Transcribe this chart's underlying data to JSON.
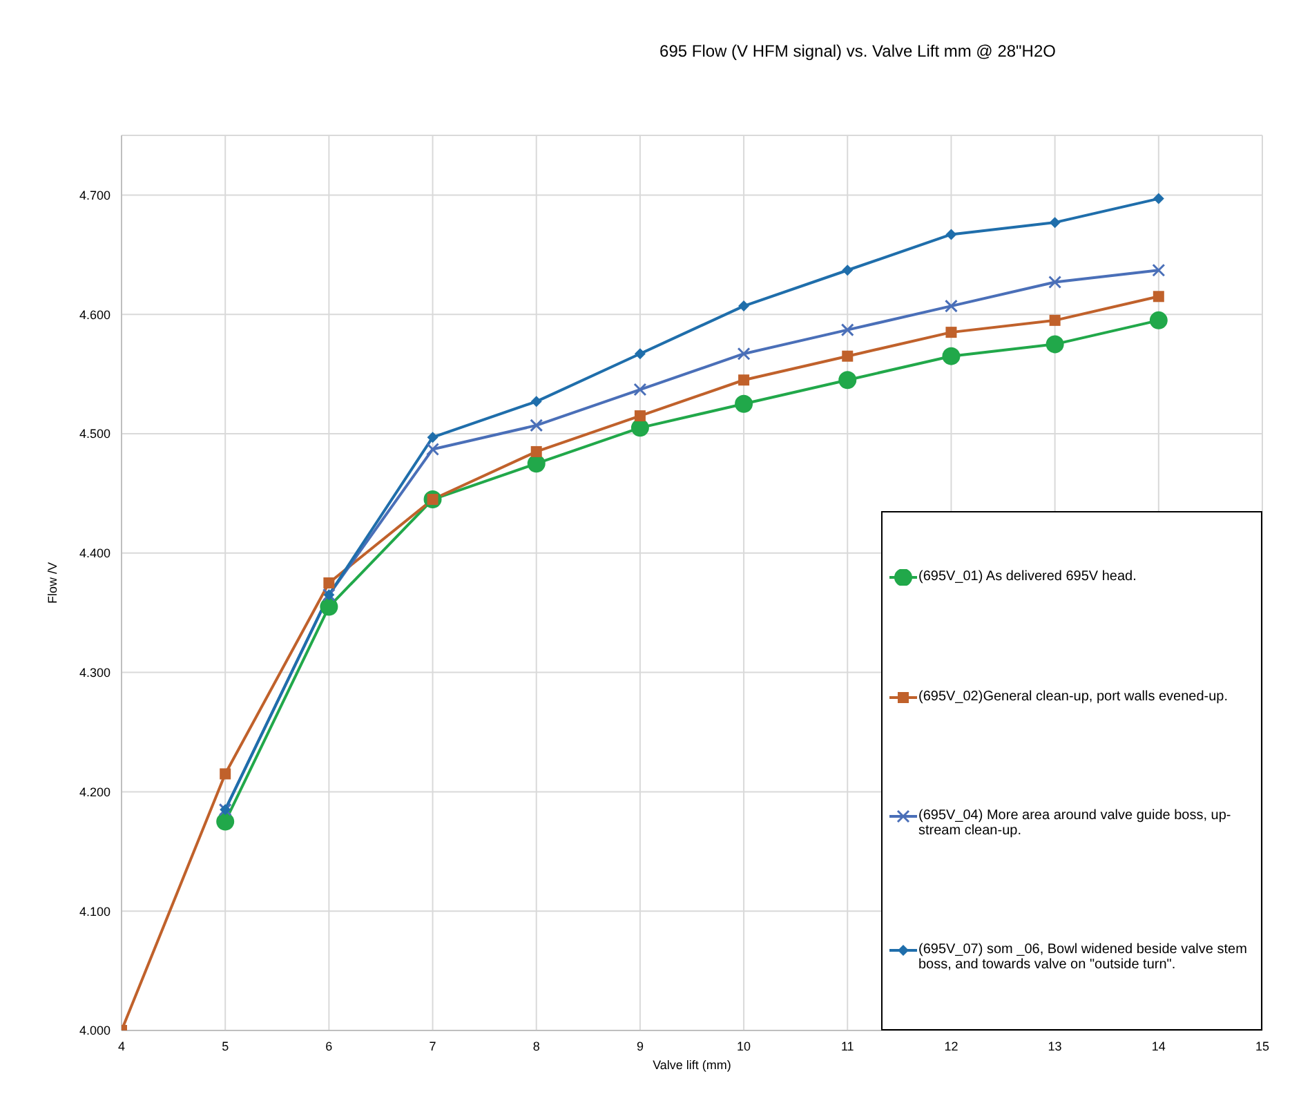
{
  "chart_data": {
    "type": "line",
    "title": "695 Flow (V HFM signal) vs. Valve Lift mm @ 28\"H2O",
    "xlabel": "Valve lift (mm)",
    "ylabel": "Flow /V",
    "x": [
      4,
      5,
      6,
      7,
      8,
      9,
      10,
      11,
      12,
      13,
      14
    ],
    "xlim": [
      4,
      15
    ],
    "xticks": [
      4,
      5,
      6,
      7,
      8,
      9,
      10,
      11,
      12,
      13,
      14,
      15
    ],
    "ylim": [
      4.0,
      4.75
    ],
    "yticks": [
      {
        "value": 4.0,
        "label": "4.000"
      },
      {
        "value": 4.1,
        "label": "4.100"
      },
      {
        "value": 4.2,
        "label": "4.200"
      },
      {
        "value": 4.3,
        "label": "4.300"
      },
      {
        "value": 4.4,
        "label": "4.400"
      },
      {
        "value": 4.5,
        "label": "4.500"
      },
      {
        "value": 4.6,
        "label": "4.600"
      },
      {
        "value": 4.7,
        "label": "4.700"
      }
    ],
    "grid": true,
    "legend": "bottom right",
    "line_style": "solid",
    "series": [
      {
        "name": "(695V_01) As delivered 695V head.",
        "color": "#21a84a",
        "marker": "circle",
        "values": [
          null,
          4.175,
          4.355,
          4.445,
          4.475,
          4.505,
          4.525,
          4.545,
          4.565,
          4.575,
          4.595
        ]
      },
      {
        "name": "(695V_02)General clean-up, port walls evened-up.",
        "color": "#c0612b",
        "marker": "square",
        "values": [
          4.0,
          4.215,
          4.375,
          4.445,
          4.485,
          4.515,
          4.545,
          4.565,
          4.585,
          4.595,
          4.615
        ]
      },
      {
        "name": "(695V_04) More area around valve guide boss, up-stream clean-up.",
        "color": "#4a6fb8",
        "marker": "cross",
        "values": [
          null,
          4.185,
          4.365,
          4.487,
          4.507,
          4.537,
          4.567,
          4.587,
          4.607,
          4.627,
          4.637
        ]
      },
      {
        "name": "(695V_07) som _06, Bowl widened beside valve stem boss, and towards valve on \"outside turn\".",
        "color": "#1f6eab",
        "marker": "diamond",
        "values": [
          null,
          4.185,
          4.365,
          4.497,
          4.527,
          4.567,
          4.607,
          4.637,
          4.667,
          4.677,
          4.697
        ]
      }
    ]
  }
}
